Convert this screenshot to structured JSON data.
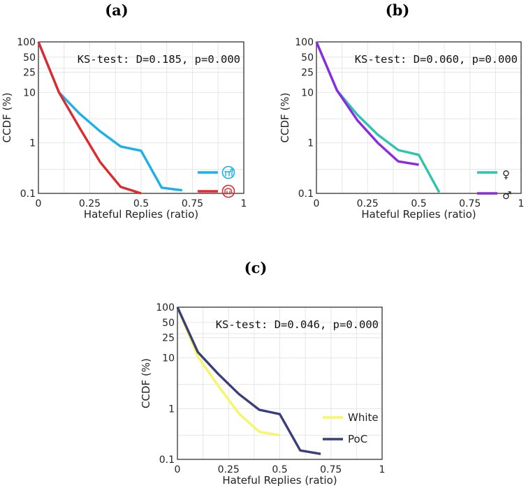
{
  "chart_data": [
    {
      "type": "line",
      "panel_label": "(a)",
      "annotation": "KS-test: D=0.185, p=0.000",
      "xlabel": "Hateful Replies (ratio)",
      "ylabel": "CCDF (%)",
      "xlim": [
        0,
        1
      ],
      "ylim": [
        0.1,
        100
      ],
      "yscale": "log",
      "x_ticks": [
        "0",
        "0.25",
        "0.5",
        "0.75",
        "1"
      ],
      "x_tick_values": [
        0,
        0.25,
        0.5,
        0.75,
        1
      ],
      "y_ticks": [
        "100",
        "50",
        "25",
        "10",
        "1",
        "0.1"
      ],
      "y_tick_values": [
        100,
        50,
        25,
        10,
        1,
        0.1
      ],
      "grid": true,
      "legend_position": "lower-right",
      "series": [
        {
          "icon": "democrat-donkey-icon",
          "color": "#1ab0e8",
          "x": [
            0,
            0.1,
            0.2,
            0.3,
            0.4,
            0.5,
            0.6,
            0.7
          ],
          "y": [
            100,
            10,
            3.8,
            1.7,
            0.85,
            0.7,
            0.13,
            0.115
          ]
        },
        {
          "icon": "republican-elephant-icon",
          "color": "#de2a2e",
          "x": [
            0,
            0.1,
            0.2,
            0.3,
            0.4,
            0.5
          ],
          "y": [
            100,
            10,
            2,
            0.42,
            0.135,
            0.1
          ]
        }
      ]
    },
    {
      "type": "line",
      "panel_label": "(b)",
      "annotation": "KS-test: D=0.060, p=0.000",
      "xlabel": "Hateful Replies (ratio)",
      "ylabel": "CCDF (%)",
      "xlim": [
        0,
        1
      ],
      "ylim": [
        0.1,
        100
      ],
      "yscale": "log",
      "x_ticks": [
        "0",
        "0.25",
        "0.5",
        "0.75",
        "1"
      ],
      "x_tick_values": [
        0,
        0.25,
        0.5,
        0.75,
        1
      ],
      "y_ticks": [
        "100",
        "50",
        "25",
        "10",
        "1",
        "0.1"
      ],
      "y_tick_values": [
        100,
        50,
        25,
        10,
        1,
        0.1
      ],
      "grid": true,
      "legend_position": "lower-right",
      "series": [
        {
          "name": "♀",
          "color": "#2ec4b0",
          "x": [
            0,
            0.1,
            0.2,
            0.3,
            0.4,
            0.5,
            0.6
          ],
          "y": [
            100,
            11,
            3.6,
            1.45,
            0.72,
            0.58,
            0.105
          ]
        },
        {
          "name": "♂",
          "color": "#8a2be2",
          "x": [
            0,
            0.1,
            0.2,
            0.3,
            0.4,
            0.5
          ],
          "y": [
            100,
            11,
            2.8,
            1,
            0.43,
            0.37
          ]
        }
      ]
    },
    {
      "type": "line",
      "panel_label": "(c)",
      "annotation": "KS-test: D=0.046, p=0.000",
      "xlabel": "Hateful Replies (ratio)",
      "ylabel": "CCDF (%)",
      "xlim": [
        0,
        1
      ],
      "ylim": [
        0.1,
        100
      ],
      "yscale": "log",
      "x_ticks": [
        "0",
        "0.25",
        "0.5",
        "0.75",
        "1"
      ],
      "x_tick_values": [
        0,
        0.25,
        0.5,
        0.75,
        1
      ],
      "y_ticks": [
        "100",
        "50",
        "25",
        "10",
        "1",
        "0.1"
      ],
      "y_tick_values": [
        100,
        50,
        25,
        10,
        1,
        0.1
      ],
      "grid": true,
      "legend_position": "lower-right",
      "series": [
        {
          "name": "White",
          "color": "#f7f56a",
          "x": [
            0,
            0.1,
            0.2,
            0.3,
            0.4,
            0.5
          ],
          "y": [
            100,
            10.5,
            2.8,
            0.8,
            0.35,
            0.3
          ]
        },
        {
          "name": "PoC",
          "color": "#3a3f7a",
          "x": [
            0,
            0.1,
            0.2,
            0.3,
            0.4,
            0.5,
            0.6,
            0.7
          ],
          "y": [
            100,
            13,
            4.8,
            1.95,
            0.95,
            0.78,
            0.15,
            0.128
          ]
        }
      ]
    }
  ]
}
